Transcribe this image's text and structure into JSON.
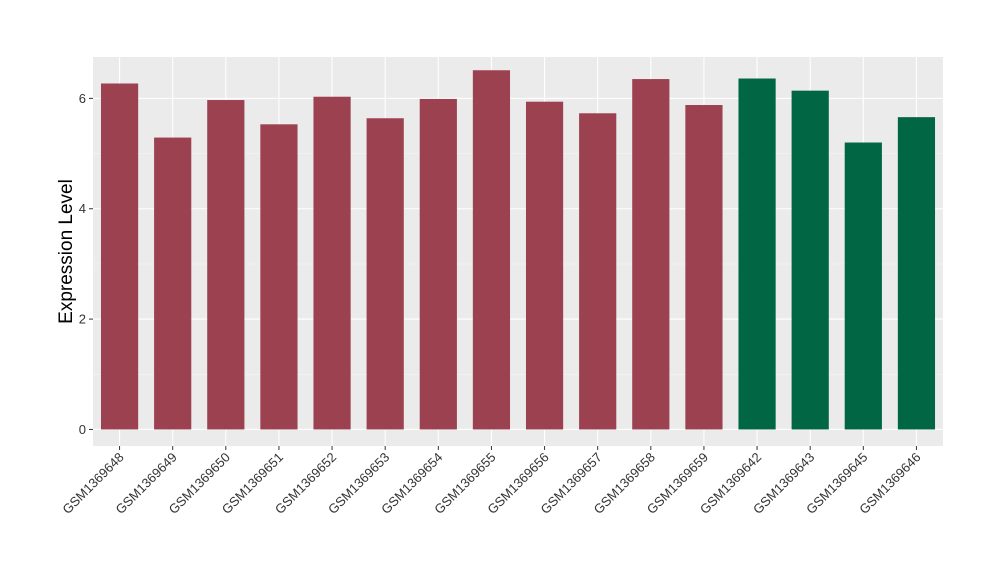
{
  "chart_data": {
    "type": "bar",
    "title": "",
    "xlabel": "",
    "ylabel": "Expression Level",
    "ylim": [
      -0.3,
      6.75
    ],
    "yticks": [
      0,
      2,
      4,
      6
    ],
    "grid": true,
    "legend": "none",
    "categories": [
      "GSM1369648",
      "GSM1369649",
      "GSM1369650",
      "GSM1369651",
      "GSM1369652",
      "GSM1369653",
      "GSM1369654",
      "GSM1369655",
      "GSM1369656",
      "GSM1369657",
      "GSM1369658",
      "GSM1369659",
      "GSM1369642",
      "GSM1369643",
      "GSM1369645",
      "GSM1369646"
    ],
    "values": [
      6.27,
      5.29,
      5.97,
      5.53,
      6.03,
      5.64,
      5.99,
      6.51,
      5.94,
      5.73,
      6.35,
      5.88,
      6.36,
      6.14,
      5.2,
      5.66
    ],
    "colors": [
      "#9b4150",
      "#9b4150",
      "#9b4150",
      "#9b4150",
      "#9b4150",
      "#9b4150",
      "#9b4150",
      "#9b4150",
      "#9b4150",
      "#9b4150",
      "#9b4150",
      "#9b4150",
      "#006644",
      "#006644",
      "#006644",
      "#006644"
    ]
  }
}
